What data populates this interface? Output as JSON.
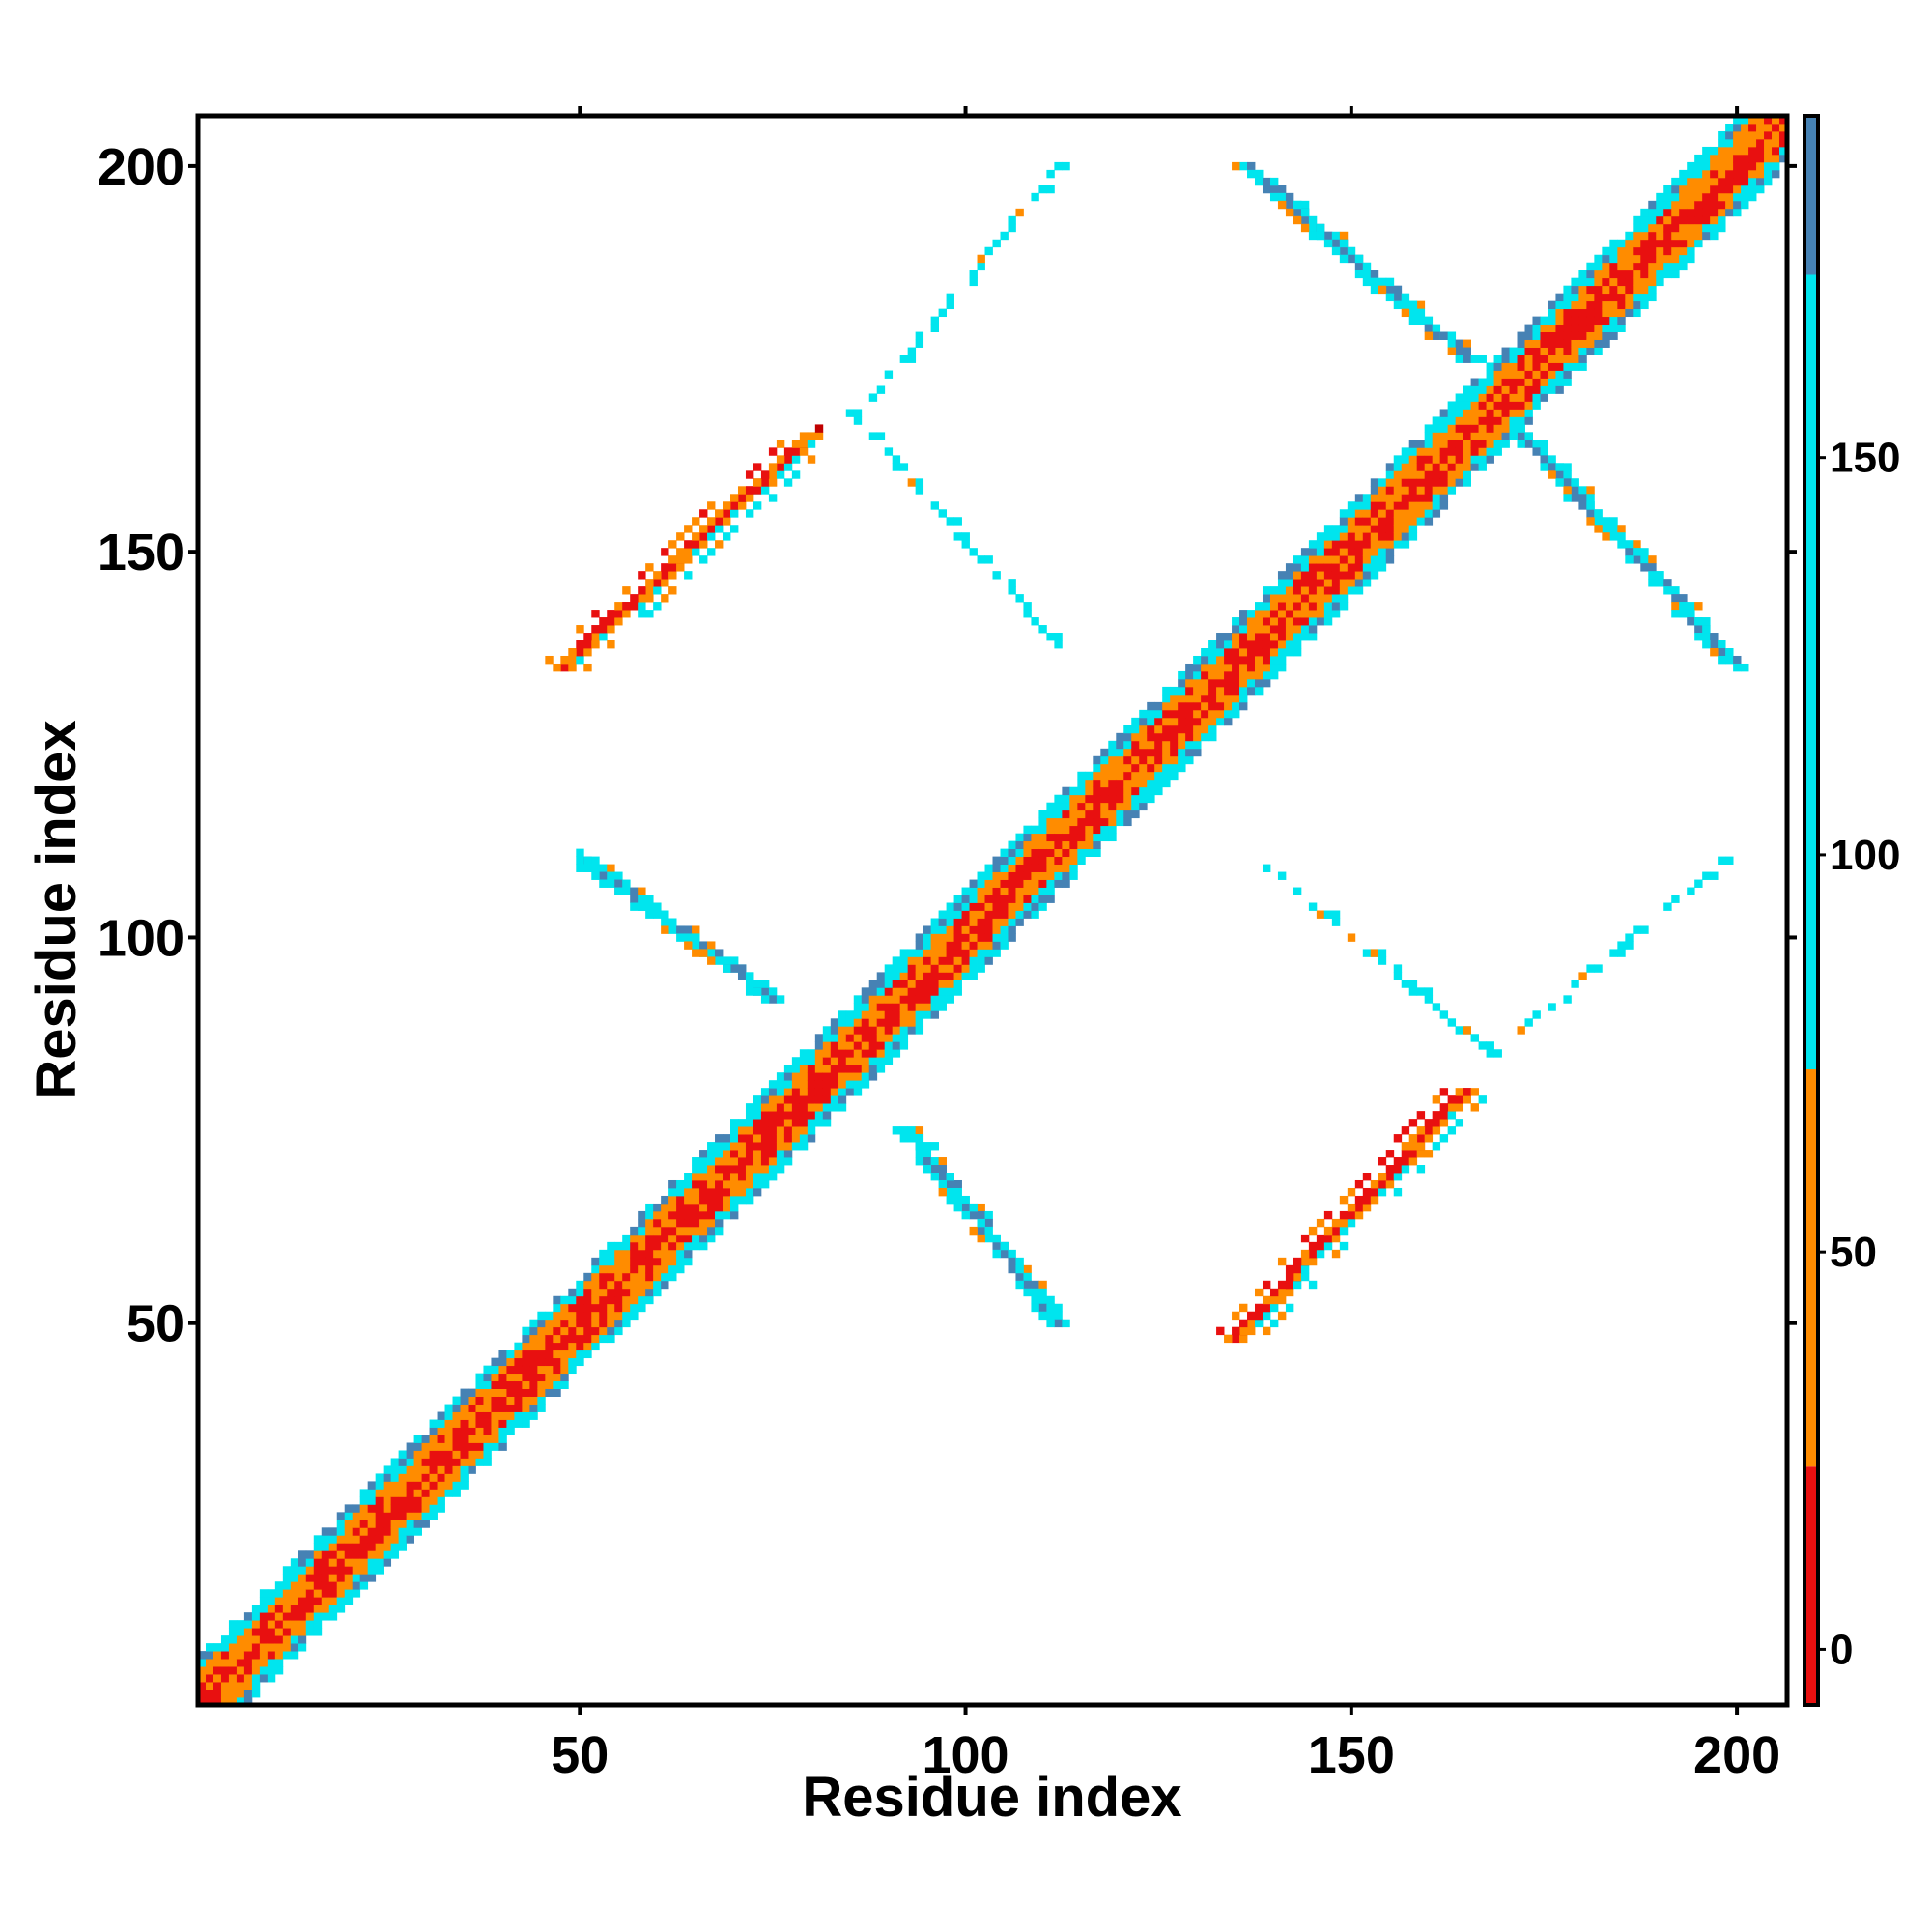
{
  "chart_data": {
    "type": "heatmap",
    "title": "",
    "xlabel": "Residue index",
    "ylabel": "Residue index",
    "xlim": [
      1,
      206
    ],
    "ylim": [
      1,
      206
    ],
    "x_ticks": [
      50,
      100,
      150,
      200
    ],
    "y_ticks": [
      50,
      100,
      150,
      200
    ],
    "colorbar": {
      "ticks": [
        0,
        50,
        100,
        150
      ],
      "range": [
        -7,
        193
      ],
      "bands": [
        {
          "from": -7,
          "to": 23,
          "color": "#e81010"
        },
        {
          "from": 23,
          "to": 73,
          "color": "#ff8c00"
        },
        {
          "from": 73,
          "to": 173,
          "color": "#00e5ee"
        },
        {
          "from": 173,
          "to": 193,
          "color": "#4682b4"
        }
      ]
    },
    "palette": {
      "very_close": "#e81010",
      "close": "#ff8c00",
      "mid": "#00e5ee",
      "far": "#4682b4",
      "dark_red": "#c00000"
    },
    "features": [
      {
        "kind": "diagonal",
        "range": [
          1,
          206
        ],
        "width": 6
      },
      {
        "kind": "antiparallel",
        "x": [
          48,
          80
        ],
        "y": [
          135,
          165
        ],
        "value_class": "close"
      },
      {
        "kind": "antiparallel",
        "x": [
          135,
          165
        ],
        "y": [
          48,
          80
        ],
        "value_class": "close"
      },
      {
        "kind": "parallel",
        "x": [
          50,
          75
        ],
        "y": [
          110,
          92
        ],
        "value_class": "mid"
      },
      {
        "kind": "parallel",
        "x": [
          92,
          112
        ],
        "y": [
          75,
          50
        ],
        "value_class": "mid"
      },
      {
        "kind": "parallel",
        "x": [
          136,
          165
        ],
        "y": [
          200,
          175
        ],
        "value_class": "mid"
      },
      {
        "kind": "parallel",
        "x": [
          172,
          200
        ],
        "y": [
          165,
          135
        ],
        "value_class": "mid"
      },
      {
        "kind": "sparse_line",
        "x": [
          85,
          112
        ],
        "y": [
          168,
          138
        ],
        "value_class": "mid"
      },
      {
        "kind": "sparse_line",
        "x": [
          88,
          112
        ],
        "y": [
          170,
          200
        ],
        "value_class": "mid"
      },
      {
        "kind": "sparse_line",
        "x": [
          138,
          168
        ],
        "y": [
          110,
          85
        ],
        "value_class": "mid"
      },
      {
        "kind": "sparse_line",
        "x": [
          172,
          198
        ],
        "y": [
          88,
          110
        ],
        "value_class": "mid"
      }
    ]
  }
}
